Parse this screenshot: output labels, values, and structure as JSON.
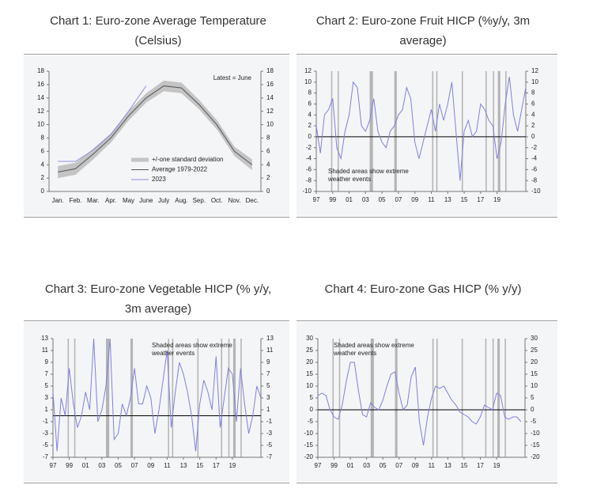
{
  "chart_data": [
    {
      "type": "line",
      "title": "Chart 1: Euro-zone Average Temperature (Celsius)",
      "categories": [
        "Jan.",
        "Feb.",
        "Mar.",
        "Apr.",
        "May",
        "June",
        "July",
        "Aug.",
        "Sep.",
        "Oct.",
        "Nov.",
        "Dec."
      ],
      "series": [
        {
          "name": "+/-one standard deviation",
          "color": "#c4c4c4",
          "lower": [
            2.0,
            2.5,
            4.8,
            7.3,
            10.6,
            13.3,
            15.0,
            14.7,
            12.3,
            9.3,
            5.3,
            3.2
          ],
          "upper": [
            3.8,
            4.3,
            6.4,
            8.7,
            12.0,
            14.7,
            16.6,
            16.3,
            13.7,
            10.7,
            6.7,
            4.8
          ]
        },
        {
          "name": "Average 1979-2022",
          "color": "#555555",
          "values": [
            2.9,
            3.4,
            5.6,
            8.0,
            11.3,
            14.0,
            15.8,
            15.5,
            13.0,
            10.0,
            6.0,
            4.0
          ]
        },
        {
          "name": "2023",
          "color": "#8f8fe3",
          "values": [
            4.5,
            4.5,
            6.2,
            8.5,
            12.0,
            15.8,
            null,
            null,
            null,
            null,
            null,
            null
          ]
        }
      ],
      "annotation": [
        "Latest = June"
      ],
      "legend": "lower center",
      "ylim": [
        0,
        18
      ],
      "yticks": [
        0,
        2,
        4,
        6,
        8,
        10,
        12,
        14,
        16,
        18
      ],
      "y2lim": [
        0,
        18
      ],
      "y2ticks": [
        0,
        2,
        4,
        6,
        8,
        10,
        12,
        14,
        16,
        18
      ]
    },
    {
      "type": "line",
      "title": "Chart 2: Euro-zone Fruit HICP (%y/y, 3m average)",
      "x": [
        1997,
        1997.5,
        1998,
        1998.5,
        1999,
        1999.5,
        2000,
        2000.5,
        2001,
        2001.5,
        2002,
        2002.5,
        2003,
        2003.5,
        2004,
        2004.5,
        2005,
        2005.5,
        2006,
        2006.5,
        2007,
        2007.5,
        2008,
        2008.5,
        2009,
        2009.5,
        2010,
        2010.5,
        2011,
        2011.5,
        2012,
        2012.5,
        2013,
        2013.5,
        2014,
        2014.5,
        2015,
        2015.5,
        2016,
        2016.5,
        2017,
        2017.5,
        2018,
        2018.5,
        2019,
        2019.5,
        2020,
        2020.5,
        2021,
        2021.5,
        2022,
        2022.5
      ],
      "series": [
        {
          "color": "#7f7fe0",
          "values": [
            2,
            -3,
            4,
            5,
            7,
            -2,
            -4,
            1,
            4,
            10,
            9,
            2,
            1,
            3,
            7,
            1,
            -1,
            -2,
            1,
            2,
            4,
            5,
            9,
            7,
            -1,
            -4,
            -1,
            2,
            5,
            1,
            6,
            3,
            6,
            10,
            1,
            -8,
            1,
            3,
            0,
            1,
            6,
            5,
            3,
            2,
            -4,
            -1,
            6,
            11,
            4,
            1,
            5,
            9
          ]
        }
      ],
      "shaded": [
        [
          1998.8,
          1998.95
        ],
        [
          1999.6,
          1999.75
        ],
        [
          2003.5,
          2003.9
        ],
        [
          2006.5,
          2006.8
        ],
        [
          2011.1,
          2011.25
        ],
        [
          2011.6,
          2011.75
        ],
        [
          2014.7,
          2014.85
        ],
        [
          2017.6,
          2017.75
        ],
        [
          2018.5,
          2018.65
        ],
        [
          2019.1,
          2019.4
        ],
        [
          2020.0,
          2020.15
        ]
      ],
      "annotation": [
        "Shaded areas show extreme",
        "weather events"
      ],
      "xlim": [
        1997,
        2022.5
      ],
      "xticks": [
        {
          "value": 1997,
          "label": "97"
        },
        {
          "value": 1999,
          "label": "99"
        },
        {
          "value": 2001,
          "label": "01"
        },
        {
          "value": 2003,
          "label": "03"
        },
        {
          "value": 2005,
          "label": "05"
        },
        {
          "value": 2007,
          "label": "07"
        },
        {
          "value": 2009,
          "label": "09"
        },
        {
          "value": 2011,
          "label": "11"
        },
        {
          "value": 2013,
          "label": "13"
        },
        {
          "value": 2015,
          "label": "15"
        },
        {
          "value": 2017,
          "label": "17"
        },
        {
          "value": 2019,
          "label": "19"
        }
      ],
      "ylim": [
        -10,
        12
      ],
      "yticks": [
        -10,
        -8,
        -6,
        -4,
        -2,
        0,
        2,
        4,
        6,
        8,
        10,
        12
      ],
      "y2lim": [
        -10,
        12
      ],
      "y2ticks": [
        -10,
        -8,
        -6,
        -4,
        -2,
        0,
        2,
        4,
        6,
        8,
        10,
        12
      ]
    },
    {
      "type": "line",
      "title": "Chart 3: Euro-zone Vegetable HICP (% y/y, 3m average)",
      "x": [
        1997,
        1997.5,
        1998,
        1998.5,
        1999,
        1999.5,
        2000,
        2000.5,
        2001,
        2001.5,
        2002,
        2002.5,
        2003,
        2003.5,
        2004,
        2004.5,
        2005,
        2005.5,
        2006,
        2006.5,
        2007,
        2007.5,
        2008,
        2008.5,
        2009,
        2009.5,
        2010,
        2010.5,
        2011,
        2011.5,
        2012,
        2012.5,
        2013,
        2013.5,
        2014,
        2014.5,
        2015,
        2015.5,
        2016,
        2016.5,
        2017,
        2017.5,
        2018,
        2018.5,
        2019,
        2019.5,
        2020,
        2020.5,
        2021,
        2021.5,
        2022,
        2022.5
      ],
      "series": [
        {
          "color": "#7f7fe0",
          "values": [
            4,
            -6,
            3,
            0,
            8,
            2,
            -2,
            0,
            4,
            1,
            13,
            -1,
            1,
            5,
            13,
            -4,
            -3,
            2,
            0,
            3,
            8,
            2,
            2,
            5,
            3,
            -3,
            1,
            6,
            11,
            -2,
            4,
            9,
            7,
            4,
            0,
            -6,
            2,
            6,
            4,
            1,
            10,
            -2,
            3,
            8,
            7,
            -1,
            8,
            2,
            -3,
            0,
            5,
            3
          ]
        }
      ],
      "shaded": [
        [
          1998.8,
          1998.95
        ],
        [
          1999.6,
          1999.75
        ],
        [
          2003.5,
          2003.9
        ],
        [
          2006.5,
          2006.8
        ],
        [
          2011.1,
          2011.25
        ],
        [
          2011.6,
          2011.75
        ],
        [
          2014.7,
          2014.85
        ],
        [
          2017.6,
          2017.75
        ],
        [
          2018.5,
          2018.65
        ],
        [
          2019.1,
          2019.4
        ],
        [
          2020.0,
          2020.15
        ]
      ],
      "annotation": [
        "Shaded areas show extreme",
        "weather events"
      ],
      "xlim": [
        1997,
        2022.5
      ],
      "xticks": [
        {
          "value": 1997,
          "label": "97"
        },
        {
          "value": 1999,
          "label": "99"
        },
        {
          "value": 2001,
          "label": "01"
        },
        {
          "value": 2003,
          "label": "03"
        },
        {
          "value": 2005,
          "label": "05"
        },
        {
          "value": 2007,
          "label": "07"
        },
        {
          "value": 2009,
          "label": "09"
        },
        {
          "value": 2011,
          "label": "11"
        },
        {
          "value": 2013,
          "label": "13"
        },
        {
          "value": 2015,
          "label": "15"
        },
        {
          "value": 2017,
          "label": "17"
        },
        {
          "value": 2019,
          "label": "19"
        }
      ],
      "ylim": [
        -7,
        13
      ],
      "yticks": [
        -7,
        -5,
        -3,
        -1,
        1,
        3,
        5,
        7,
        9,
        11,
        13
      ],
      "y2lim": [
        -7,
        13
      ],
      "y2ticks": [
        -7,
        -5,
        -3,
        -1,
        1,
        3,
        5,
        7,
        9,
        11,
        13
      ]
    },
    {
      "type": "line",
      "title": "Chart 4: Euro-zone Gas HICP (% y/y)",
      "x": [
        1997,
        1997.5,
        1998,
        1998.5,
        1999,
        1999.5,
        2000,
        2000.5,
        2001,
        2001.5,
        2002,
        2002.5,
        2003,
        2003.5,
        2004,
        2004.5,
        2005,
        2005.5,
        2006,
        2006.5,
        2007,
        2007.5,
        2008,
        2008.5,
        2009,
        2009.5,
        2010,
        2010.5,
        2011,
        2011.5,
        2012,
        2012.5,
        2013,
        2013.5,
        2014,
        2014.5,
        2015,
        2015.5,
        2016,
        2016.5,
        2017,
        2017.5,
        2018,
        2018.5,
        2019,
        2019.5,
        2020,
        2020.5,
        2021,
        2021.5,
        2022
      ],
      "series": [
        {
          "color": "#7f7fe0",
          "values": [
            6,
            7,
            6,
            0,
            -3,
            -4,
            2,
            12,
            20,
            20,
            8,
            -2,
            -3,
            3,
            1,
            0,
            4,
            10,
            15,
            16,
            7,
            0,
            2,
            14,
            18,
            -5,
            -15,
            -3,
            5,
            10,
            9,
            10,
            7,
            4,
            2,
            -1,
            -2,
            -3,
            -5,
            -6,
            -3,
            2,
            1,
            0,
            7,
            6,
            -3,
            -4,
            -3,
            -3,
            -5
          ]
        }
      ],
      "shaded": [
        [
          1998.8,
          1998.95
        ],
        [
          1999.6,
          1999.75
        ],
        [
          2003.5,
          2003.9
        ],
        [
          2006.5,
          2006.8
        ],
        [
          2011.1,
          2011.25
        ],
        [
          2011.6,
          2011.75
        ],
        [
          2014.7,
          2014.85
        ],
        [
          2017.6,
          2017.75
        ],
        [
          2018.5,
          2018.65
        ],
        [
          2019.1,
          2019.4
        ],
        [
          2020.0,
          2020.15
        ]
      ],
      "annotation": [
        "Shaded areas show extreme",
        "weather events"
      ],
      "xlim": [
        1997,
        2022.5
      ],
      "xticks": [
        {
          "value": 1997,
          "label": "97"
        },
        {
          "value": 1999,
          "label": "99"
        },
        {
          "value": 2001,
          "label": "01"
        },
        {
          "value": 2003,
          "label": "03"
        },
        {
          "value": 2005,
          "label": "05"
        },
        {
          "value": 2007,
          "label": "07"
        },
        {
          "value": 2009,
          "label": "09"
        },
        {
          "value": 2011,
          "label": "11"
        },
        {
          "value": 2013,
          "label": "13"
        },
        {
          "value": 2015,
          "label": "15"
        },
        {
          "value": 2017,
          "label": "17"
        },
        {
          "value": 2019,
          "label": "19"
        }
      ],
      "ylim": [
        -20,
        30
      ],
      "yticks": [
        -20,
        -15,
        -10,
        -5,
        0,
        5,
        10,
        15,
        20,
        25,
        30
      ],
      "y2lim": [
        -20,
        30
      ],
      "y2ticks": [
        -20,
        -15,
        -10,
        -5,
        0,
        5,
        10,
        15,
        20,
        25,
        30
      ]
    }
  ]
}
